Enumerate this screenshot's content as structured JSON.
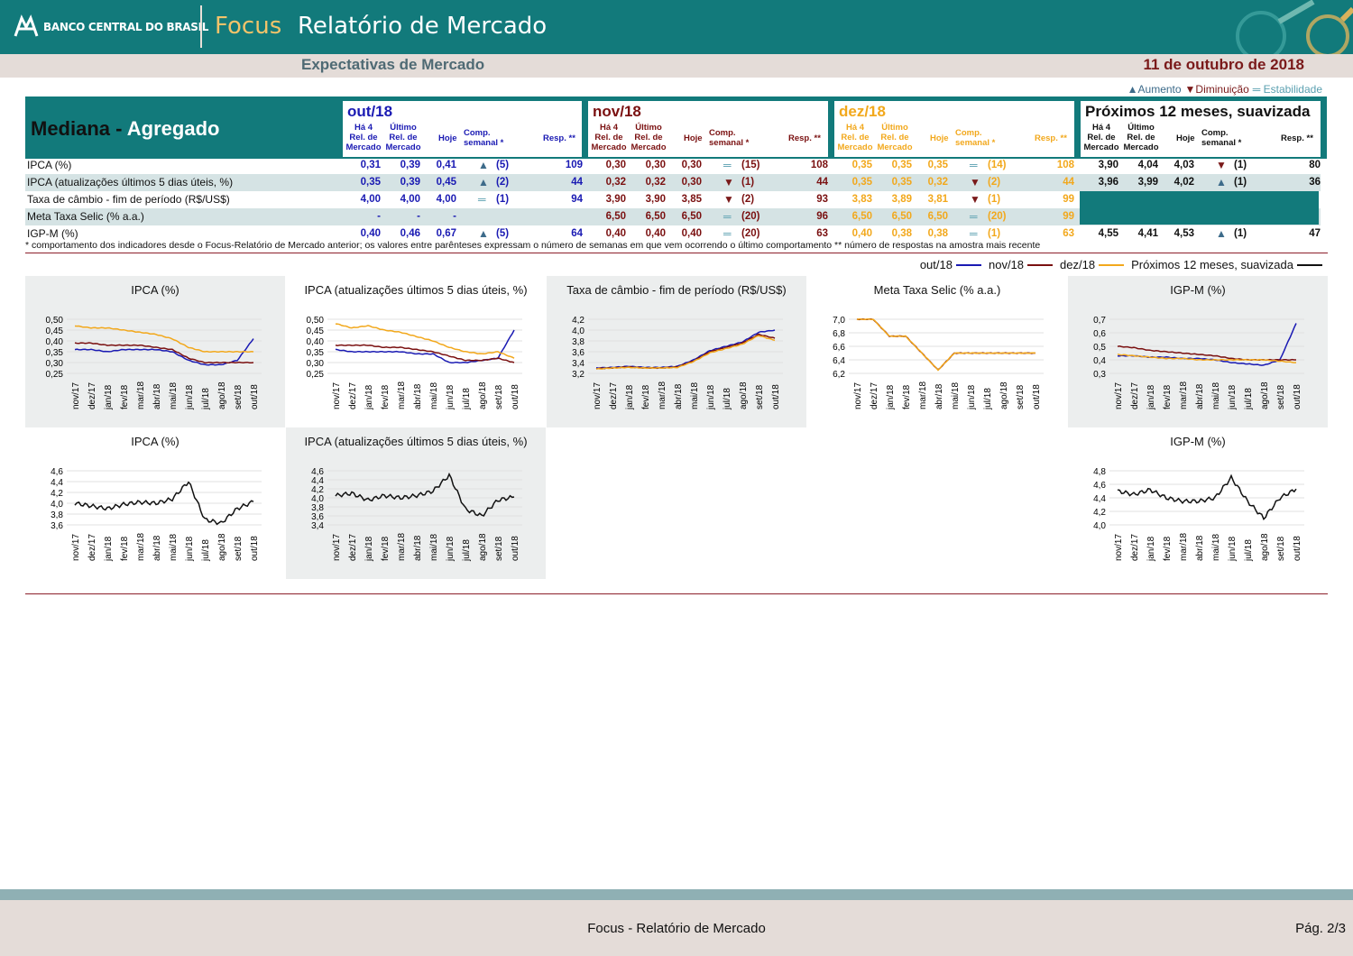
{
  "header": {
    "bank": "BANCO CENTRAL DO BRASIL",
    "focus": "Focus",
    "title": "Relatório de Mercado"
  },
  "subheader": {
    "left": "Expectativas de Mercado",
    "date": "11 de outubro de 2018"
  },
  "legend_top": {
    "up": "▲Aumento",
    "down": "▼Diminuição",
    "eq": "═ Estabilidade"
  },
  "table": {
    "title_a": "Mediana -",
    "title_b": "Agregado",
    "colh": {
      "h4a": "Há 4",
      "h4b": "Rel. de",
      "h4c": "Mercado",
      "ua": "Último",
      "ub": "Rel. de",
      "uc": "Mercado",
      "hoje": "Hoje",
      "comp": "Comp. semanal *",
      "resp": "Resp. **"
    },
    "sections": [
      {
        "title": "out/18",
        "color": "#1a1ab3"
      },
      {
        "title": "nov/18",
        "color": "#7a1010"
      },
      {
        "title": "dez/18",
        "color": "#f2a81c"
      },
      {
        "title": "Próximos 12 meses, suavizada",
        "color": "#111111"
      }
    ],
    "labels": [
      "IPCA (%)",
      "IPCA (atualizações últimos 5 dias úteis, %)",
      "Taxa de câmbio - fim de período (R$/US$)",
      "Meta Taxa Selic (% a.a.)",
      "IGP-M (%)"
    ],
    "rows": [
      [
        [
          "0,31",
          "0,39",
          "0,41",
          "▲",
          "(5)",
          "109"
        ],
        [
          "0,30",
          "0,30",
          "0,30",
          "═",
          "(15)",
          "108"
        ],
        [
          "0,35",
          "0,35",
          "0,35",
          "═",
          "(14)",
          "108"
        ],
        [
          "3,90",
          "4,04",
          "4,03",
          "▼",
          "(1)",
          "80"
        ]
      ],
      [
        [
          "0,35",
          "0,39",
          "0,45",
          "▲",
          "(2)",
          "44"
        ],
        [
          "0,32",
          "0,32",
          "0,30",
          "▼",
          "(1)",
          "44"
        ],
        [
          "0,35",
          "0,35",
          "0,32",
          "▼",
          "(2)",
          "44"
        ],
        [
          "3,96",
          "3,99",
          "4,02",
          "▲",
          "(1)",
          "36"
        ]
      ],
      [
        [
          "4,00",
          "4,00",
          "4,00",
          "═",
          "(1)",
          "94"
        ],
        [
          "3,90",
          "3,90",
          "3,85",
          "▼",
          "(2)",
          "93"
        ],
        [
          "3,83",
          "3,89",
          "3,81",
          "▼",
          "(1)",
          "99"
        ],
        null
      ],
      [
        [
          "-",
          "-",
          "-",
          "",
          "",
          ""
        ],
        [
          "6,50",
          "6,50",
          "6,50",
          "═",
          "(20)",
          "96"
        ],
        [
          "6,50",
          "6,50",
          "6,50",
          "═",
          "(20)",
          "99"
        ],
        null
      ],
      [
        [
          "0,40",
          "0,46",
          "0,67",
          "▲",
          "(5)",
          "64"
        ],
        [
          "0,40",
          "0,40",
          "0,40",
          "═",
          "(20)",
          "63"
        ],
        [
          "0,40",
          "0,38",
          "0,38",
          "═",
          "(1)",
          "63"
        ],
        [
          "4,55",
          "4,41",
          "4,53",
          "▲",
          "(1)",
          "47"
        ]
      ]
    ]
  },
  "footnote": "* comportamento dos indicadores desde o Focus-Relatório de Mercado anterior; os valores entre parênteses expressam o número de semanas em que vem ocorrendo o último comportamento ** número de respostas na amostra mais recente",
  "series_legend": {
    "out": "out/18",
    "nov": "nov/18",
    "dez": "dez/18",
    "p12": "Próximos 12 meses, suavizada"
  },
  "colors": {
    "out": "#1a1ab3",
    "nov": "#7a1010",
    "dez": "#f2a81c",
    "p12": "#111111",
    "teal": "#127a7b"
  },
  "chart_data": [
    {
      "type": "line",
      "title": "IPCA (%)",
      "x": [
        "nov/17",
        "dez/17",
        "jan/18",
        "fev/18",
        "mar/18",
        "abr/18",
        "mai/18",
        "jun/18",
        "jul/18",
        "ago/18",
        "set/18",
        "out/18"
      ],
      "yticks": [
        "0,50",
        "0,45",
        "0,40",
        "0,35",
        "0,30",
        "0,25"
      ],
      "ylim": [
        0.25,
        0.5
      ],
      "series": [
        {
          "name": "out/18",
          "values": [
            0.36,
            0.36,
            0.35,
            0.36,
            0.36,
            0.36,
            0.35,
            0.31,
            0.29,
            0.29,
            0.31,
            0.41
          ]
        },
        {
          "name": "nov/18",
          "values": [
            0.39,
            0.39,
            0.38,
            0.38,
            0.38,
            0.37,
            0.36,
            0.32,
            0.3,
            0.3,
            0.3,
            0.3
          ]
        },
        {
          "name": "dez/18",
          "values": [
            0.47,
            0.46,
            0.46,
            0.45,
            0.44,
            0.43,
            0.41,
            0.37,
            0.35,
            0.35,
            0.35,
            0.35
          ]
        }
      ]
    },
    {
      "type": "line",
      "title": "IPCA (atualizações últimos 5 dias úteis, %)",
      "x": [
        "nov/17",
        "dez/17",
        "jan/18",
        "fev/18",
        "mar/18",
        "abr/18",
        "mai/18",
        "jun/18",
        "jul/18",
        "ago/18",
        "set/18",
        "out/18"
      ],
      "yticks": [
        "0,50",
        "0,45",
        "0,40",
        "0,35",
        "0,30",
        "0,25"
      ],
      "ylim": [
        0.25,
        0.5
      ],
      "series": [
        {
          "name": "out/18",
          "values": [
            0.36,
            0.35,
            0.35,
            0.35,
            0.35,
            0.34,
            0.34,
            0.3,
            0.3,
            0.31,
            0.32,
            0.45
          ]
        },
        {
          "name": "nov/18",
          "values": [
            0.38,
            0.38,
            0.38,
            0.37,
            0.37,
            0.36,
            0.35,
            0.33,
            0.31,
            0.31,
            0.32,
            0.3
          ]
        },
        {
          "name": "dez/18",
          "values": [
            0.48,
            0.46,
            0.47,
            0.45,
            0.44,
            0.42,
            0.4,
            0.37,
            0.35,
            0.34,
            0.35,
            0.32
          ]
        }
      ]
    },
    {
      "type": "line",
      "title": "Taxa de câmbio - fim de período (R$/US$)",
      "x": [
        "nov/17",
        "dez/17",
        "jan/18",
        "fev/18",
        "mar/18",
        "abr/18",
        "mai/18",
        "jun/18",
        "jul/18",
        "ago/18",
        "set/18",
        "out/18"
      ],
      "yticks": [
        "4,2",
        "4,0",
        "3,8",
        "3,6",
        "3,4",
        "3,2"
      ],
      "ylim": [
        3.2,
        4.2
      ],
      "series": [
        {
          "name": "out/18",
          "values": [
            3.3,
            3.31,
            3.33,
            3.31,
            3.31,
            3.33,
            3.45,
            3.62,
            3.7,
            3.78,
            3.96,
            4.0
          ]
        },
        {
          "name": "nov/18",
          "values": [
            3.29,
            3.3,
            3.32,
            3.3,
            3.3,
            3.32,
            3.43,
            3.6,
            3.68,
            3.76,
            3.92,
            3.85
          ]
        },
        {
          "name": "dez/18",
          "values": [
            3.28,
            3.3,
            3.31,
            3.3,
            3.3,
            3.31,
            3.42,
            3.58,
            3.66,
            3.74,
            3.9,
            3.81
          ]
        }
      ]
    },
    {
      "type": "line",
      "title": "Meta Taxa Selic (% a.a.)",
      "x": [
        "nov/17",
        "dez/17",
        "jan/18",
        "fev/18",
        "mar/18",
        "abr/18",
        "mai/18",
        "jun/18",
        "jul/18",
        "ago/18",
        "set/18",
        "out/18"
      ],
      "yticks": [
        "7,0",
        "6,8",
        "6,6",
        "6,4",
        "6,2"
      ],
      "ylim": [
        6.2,
        7.0
      ],
      "series": [
        {
          "name": "nov/18",
          "values": [
            7.0,
            7.0,
            6.75,
            6.75,
            6.5,
            6.25,
            6.5,
            6.5,
            6.5,
            6.5,
            6.5,
            6.5
          ]
        },
        {
          "name": "dez/18",
          "values": [
            7.0,
            7.0,
            6.75,
            6.75,
            6.5,
            6.25,
            6.5,
            6.5,
            6.5,
            6.5,
            6.5,
            6.5
          ]
        }
      ]
    },
    {
      "type": "line",
      "title": "IGP-M (%)",
      "x": [
        "nov/17",
        "dez/17",
        "jan/18",
        "fev/18",
        "mar/18",
        "abr/18",
        "mai/18",
        "jun/18",
        "jul/18",
        "ago/18",
        "set/18",
        "out/18"
      ],
      "yticks": [
        "0,7",
        "0,6",
        "0,5",
        "0,4",
        "0,3"
      ],
      "ylim": [
        0.3,
        0.7
      ],
      "series": [
        {
          "name": "out/18",
          "values": [
            0.43,
            0.43,
            0.42,
            0.42,
            0.41,
            0.41,
            0.4,
            0.38,
            0.37,
            0.36,
            0.4,
            0.67
          ]
        },
        {
          "name": "nov/18",
          "values": [
            0.5,
            0.49,
            0.47,
            0.46,
            0.45,
            0.44,
            0.43,
            0.41,
            0.4,
            0.4,
            0.4,
            0.4
          ]
        },
        {
          "name": "dez/18",
          "values": [
            0.44,
            0.43,
            0.42,
            0.41,
            0.41,
            0.4,
            0.4,
            0.4,
            0.4,
            0.4,
            0.39,
            0.38
          ]
        }
      ]
    },
    {
      "type": "line",
      "title": "IPCA (%)",
      "x": [
        "nov/17",
        "dez/17",
        "jan/18",
        "fev/18",
        "mar/18",
        "abr/18",
        "mai/18",
        "jun/18",
        "jul/18",
        "ago/18",
        "set/18",
        "out/18"
      ],
      "yticks": [
        "4,6",
        "4,4",
        "4,2",
        "4,0",
        "3,8",
        "3,6"
      ],
      "ylim": [
        3.6,
        4.6
      ],
      "series": [
        {
          "name": "Próximos 12 meses, suavizada",
          "values": [
            4.0,
            3.95,
            3.9,
            3.98,
            4.02,
            4.0,
            4.08,
            4.4,
            3.7,
            3.63,
            3.9,
            4.03
          ]
        }
      ]
    },
    {
      "type": "line",
      "title": "IPCA (atualizações últimos 5 dias úteis, %)",
      "x": [
        "nov/17",
        "dez/17",
        "jan/18",
        "fev/18",
        "mar/18",
        "abr/18",
        "mai/18",
        "jun/18",
        "jul/18",
        "ago/18",
        "set/18",
        "out/18"
      ],
      "yticks": [
        "4,6",
        "4,4",
        "4,2",
        "4,0",
        "3,8",
        "3,6",
        "3,4"
      ],
      "ylim": [
        3.4,
        4.6
      ],
      "series": [
        {
          "name": "Próximos 12 meses, suavizada",
          "values": [
            4.05,
            4.1,
            3.95,
            4.05,
            4.0,
            4.05,
            4.15,
            4.5,
            3.75,
            3.6,
            3.95,
            4.02
          ]
        }
      ]
    },
    {
      "type": "line",
      "title": "IGP-M (%)",
      "x": [
        "nov/17",
        "dez/17",
        "jan/18",
        "fev/18",
        "mar/18",
        "abr/18",
        "mai/18",
        "jun/18",
        "jul/18",
        "ago/18",
        "set/18",
        "out/18"
      ],
      "yticks": [
        "4,8",
        "4,6",
        "4,4",
        "4,2",
        "4,0"
      ],
      "ylim": [
        4.0,
        4.8
      ],
      "series": [
        {
          "name": "Próximos 12 meses, suavizada",
          "values": [
            4.5,
            4.45,
            4.52,
            4.4,
            4.35,
            4.35,
            4.4,
            4.7,
            4.35,
            4.1,
            4.4,
            4.53
          ]
        }
      ]
    }
  ],
  "footer": {
    "title": "Focus - Relatório de Mercado",
    "page": "Pág. 2/3"
  }
}
